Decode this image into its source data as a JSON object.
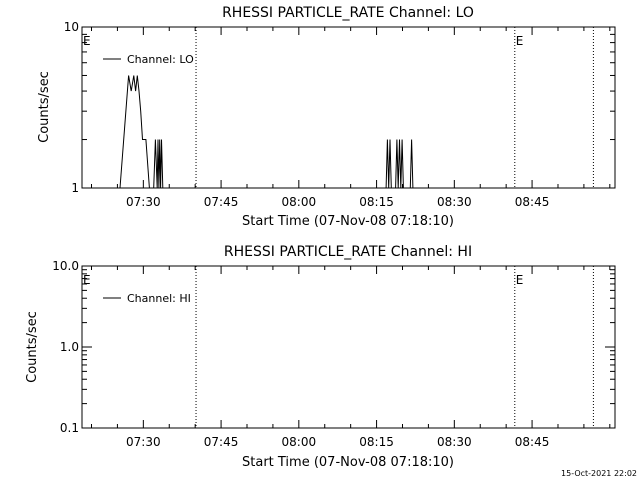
{
  "chart_data": [
    {
      "type": "line",
      "title": "RHESSI PARTICLE_RATE Channel: LO",
      "xlabel": "Start Time (07-Nov-08 07:18:10)",
      "ylabel": "Counts/sec",
      "yscale": "log",
      "ylim": [
        1,
        10
      ],
      "y_ticks": [
        "1",
        "10"
      ],
      "xlim_seconds_after_start": [
        0,
        6170
      ],
      "x_ticks": [
        "07:30",
        "07:45",
        "08:00",
        "08:15",
        "08:30",
        "08:45"
      ],
      "x_tick_seconds_after_start": [
        710,
        1610,
        2510,
        3410,
        4310,
        5210
      ],
      "legend": "top-left",
      "series": [
        {
          "name": "Channel: LO",
          "x_seconds_after_start": [
            440,
            540,
            570,
            600,
            620,
            640,
            660,
            680,
            700,
            720,
            740,
            780,
            830,
            850,
            870,
            880,
            890,
            900,
            910,
            920,
            935,
            950,
            3520,
            3535,
            3550,
            3565,
            3580,
            3630,
            3645,
            3660,
            3675,
            3690,
            3705,
            3720,
            3735,
            3800,
            3815,
            3830,
            3845
          ],
          "values": [
            1,
            5,
            4,
            5,
            4,
            5,
            4,
            3,
            2,
            2,
            2,
            1,
            1,
            2,
            1,
            2,
            1,
            2,
            1,
            2,
            1,
            1,
            1,
            2,
            1,
            2,
            1,
            1,
            2,
            1,
            2,
            1,
            2,
            1,
            1,
            1,
            2,
            1,
            1
          ]
        }
      ],
      "vertical_lines_seconds_after_start": [
        1320,
        5010,
        5920
      ],
      "annotations": [
        {
          "text": "E",
          "x_seconds_after_start": 0
        },
        {
          "text": "E",
          "x_seconds_after_start": 5010
        }
      ]
    },
    {
      "type": "line",
      "title": "RHESSI PARTICLE_RATE Channel: HI",
      "xlabel": "Start Time (07-Nov-08 07:18:10)",
      "ylabel": "Counts/sec",
      "yscale": "log",
      "ylim": [
        0.1,
        10
      ],
      "y_ticks": [
        "0.1",
        "1.0",
        "10.0"
      ],
      "xlim_seconds_after_start": [
        0,
        6170
      ],
      "x_ticks": [
        "07:30",
        "07:45",
        "08:00",
        "08:15",
        "08:30",
        "08:45"
      ],
      "x_tick_seconds_after_start": [
        710,
        1610,
        2510,
        3410,
        4310,
        5210
      ],
      "legend": "top-left",
      "series": [
        {
          "name": "Channel: HI",
          "x_seconds_after_start": [],
          "values": []
        }
      ],
      "vertical_lines_seconds_after_start": [
        1320,
        5010,
        5920
      ],
      "annotations": [
        {
          "text": "E",
          "x_seconds_after_start": 0
        },
        {
          "text": "E",
          "x_seconds_after_start": 5010
        }
      ]
    }
  ],
  "footer": {
    "timestamp": "15-Oct-2021 22:02"
  }
}
